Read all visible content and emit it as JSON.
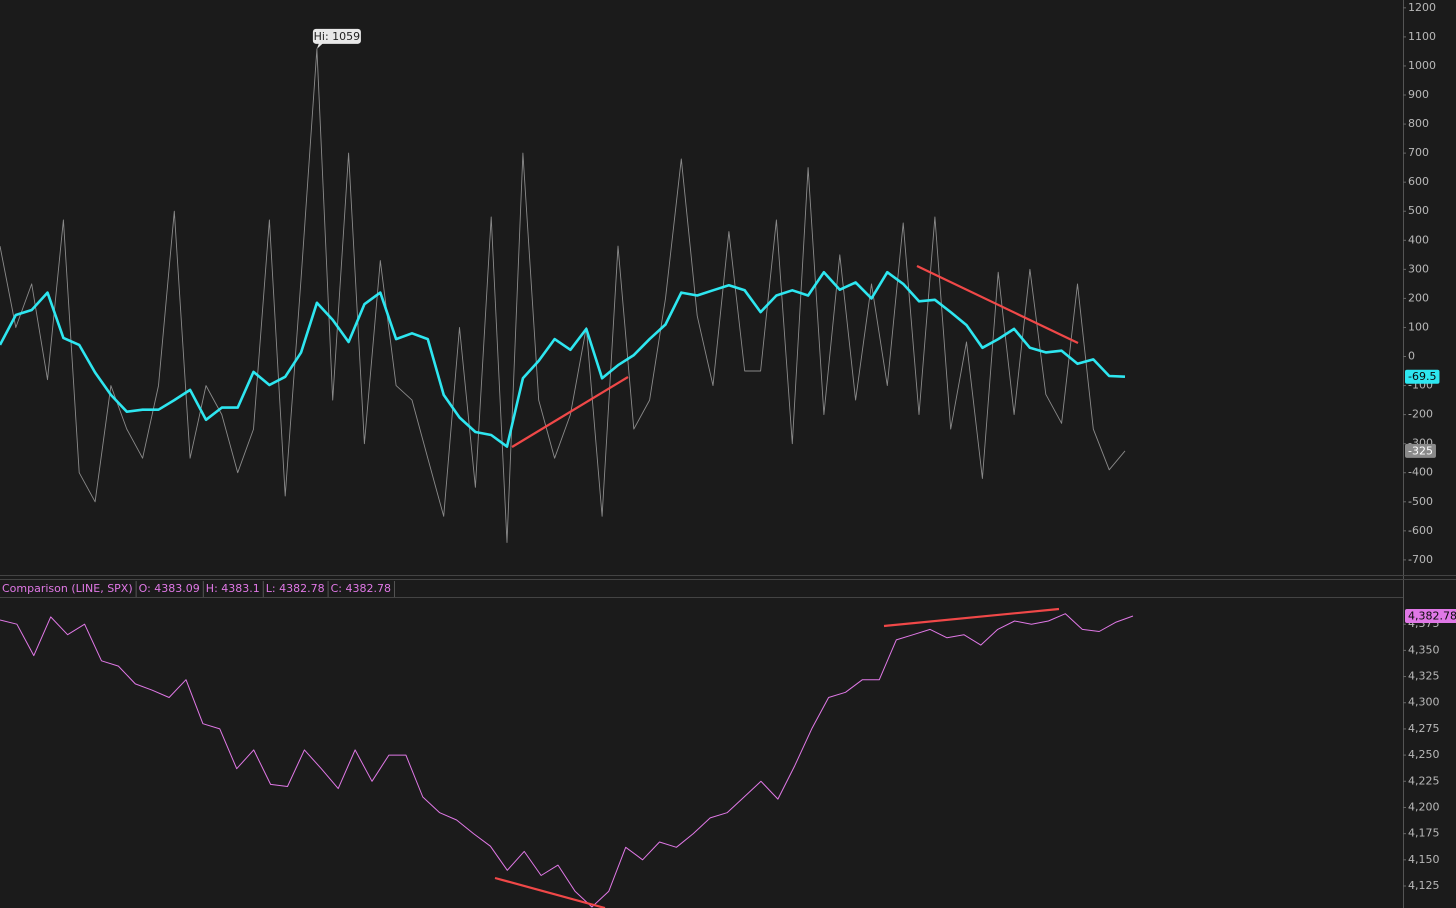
{
  "chart_data": [
    {
      "type": "line",
      "annotation": "Hi: 1059",
      "ylim": [
        -752,
        1227
      ],
      "yticks": [
        1200,
        1100,
        1000,
        900,
        800,
        700,
        600,
        500,
        400,
        300,
        200,
        100,
        0,
        -100,
        -200,
        -300,
        -400,
        -500,
        -600,
        -700
      ],
      "grid": false,
      "price_badges": true,
      "series": [
        {
          "color": "#2ee6f0",
          "width": 2.6,
          "badge_text": "#0a0a0a",
          "values": [
            40,
            143,
            160,
            220,
            64,
            40,
            -55,
            -132,
            -190,
            -183,
            -183,
            -150,
            -115,
            -218,
            -176,
            -176,
            -53,
            -98,
            -70,
            14,
            185,
            126,
            50,
            180,
            220,
            60,
            80,
            60,
            -132,
            -210,
            -260,
            -270,
            -310,
            -75,
            -15,
            60,
            23,
            95,
            -75,
            -30,
            5,
            60,
            110,
            220,
            210,
            228,
            245,
            228,
            153,
            210,
            228,
            210,
            290,
            230,
            255,
            200,
            290,
            250,
            190,
            195,
            153,
            108,
            30,
            60,
            95,
            30,
            14,
            20,
            -25,
            -10,
            -67,
            -69.5
          ]
        },
        {
          "color": "#8a8a8a",
          "width": 0.9,
          "badge_text": "#ffffff",
          "values": [
            380,
            100,
            250,
            -80,
            470,
            -400,
            -500,
            -100,
            -250,
            -350,
            -100,
            500,
            -350,
            -100,
            -200,
            -400,
            -250,
            470,
            -480,
            270,
            1059,
            -150,
            700,
            -300,
            330,
            -100,
            -150,
            -350,
            -550,
            100,
            -450,
            480,
            -640,
            700,
            -150,
            -350,
            -200,
            100,
            -550,
            380,
            -250,
            -150,
            200,
            680,
            140,
            -100,
            430,
            -50,
            -50,
            470,
            -300,
            650,
            -200,
            350,
            -150,
            250,
            -100,
            460,
            -200,
            480,
            -250,
            50,
            -420,
            290,
            -200,
            300,
            -130,
            -230,
            250,
            -250,
            -390,
            -325
          ]
        }
      ]
    },
    {
      "type": "line",
      "title": "Comparison (LINE, SPX)",
      "ohlc": [
        "O: 4383.09",
        "H: 4383.1",
        "L: 4382.78",
        "C: 4382.78"
      ],
      "ylim": [
        4104,
        4400
      ],
      "yticks": [
        {
          "value": 4125,
          "label": "4,125"
        },
        {
          "value": 4150,
          "label": "4,150"
        },
        {
          "value": 4175,
          "label": "4,175"
        },
        {
          "value": 4200,
          "label": "4,200"
        },
        {
          "value": 4225,
          "label": "4,225"
        },
        {
          "value": 4250,
          "label": "4,250"
        },
        {
          "value": 4275,
          "label": "4,275"
        },
        {
          "value": 4300,
          "label": "4,300"
        },
        {
          "value": 4325,
          "label": "4,325"
        },
        {
          "value": 4350,
          "label": "4,350"
        },
        {
          "value": 4375,
          "label": "4,375"
        }
      ],
      "grid": false,
      "price_badges": true,
      "series": [
        {
          "color": "#e078e6",
          "width": 1,
          "badge_text": "#0a0a0a",
          "last_value_label": "4,382.78",
          "values": [
            4379,
            4375,
            4345,
            4382,
            4365,
            4375,
            4340,
            4335,
            4318,
            4312,
            4305,
            4322,
            4280,
            4275,
            4237,
            4255,
            4222,
            4220,
            4255,
            4237,
            4218,
            4255,
            4225,
            4250,
            4250,
            4210,
            4195,
            4188,
            4175,
            4163,
            4140,
            4158,
            4135,
            4145,
            4120,
            4105,
            4120,
            4162,
            4150,
            4167,
            4162,
            4175,
            4190,
            4195,
            4210,
            4225,
            4208,
            4240,
            4275,
            4305,
            4310,
            4322,
            4322,
            4360,
            4365,
            4370,
            4362,
            4365,
            4355,
            4370,
            4378,
            4375,
            4378,
            4385,
            4370,
            4368,
            4377,
            4382.78
          ]
        }
      ]
    }
  ]
}
